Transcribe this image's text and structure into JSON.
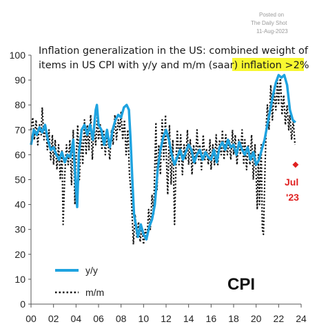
{
  "watermark": {
    "line1": "Posted on",
    "line2": "The Daily Shot",
    "line3": "11-Aug-2023"
  },
  "chart_data": {
    "type": "line",
    "title_line1": "Inflation generalization in the US: combined weight of",
    "title_line2_prefix": "items in US CPI with y/y and m/m (saar) ",
    "title_line2_highlight": "inflation >2%",
    "xlim": [
      0,
      24
    ],
    "ylim": [
      0,
      100
    ],
    "x_ticks": [
      0,
      2,
      4,
      6,
      8,
      10,
      12,
      14,
      16,
      18,
      20,
      22,
      24
    ],
    "x_tick_labels": [
      "00",
      "02",
      "04",
      "06",
      "08",
      "10",
      "12",
      "14",
      "16",
      "18",
      "20",
      "22",
      "24"
    ],
    "y_ticks": [
      0,
      10,
      20,
      30,
      40,
      50,
      60,
      70,
      80,
      90,
      100
    ],
    "y_tick_labels": [
      "0",
      "10",
      "20",
      "30",
      "40",
      "50",
      "60",
      "70",
      "80",
      "90",
      "100"
    ],
    "grid": false,
    "legend": "bottom-left",
    "series": [
      {
        "name": "y/y",
        "color": "#1fa3e0",
        "style": "solid",
        "points": [
          [
            0.0,
            64
          ],
          [
            0.25,
            70
          ],
          [
            0.5,
            68
          ],
          [
            0.75,
            71
          ],
          [
            1.0,
            69
          ],
          [
            1.25,
            72
          ],
          [
            1.5,
            66
          ],
          [
            1.75,
            62
          ],
          [
            2.0,
            63
          ],
          [
            2.25,
            60
          ],
          [
            2.5,
            58
          ],
          [
            2.75,
            61
          ],
          [
            3.0,
            57
          ],
          [
            3.25,
            60
          ],
          [
            3.5,
            59
          ],
          [
            3.75,
            66
          ],
          [
            4.0,
            46
          ],
          [
            4.1,
            39
          ],
          [
            4.25,
            60
          ],
          [
            4.5,
            70
          ],
          [
            4.75,
            72
          ],
          [
            5.0,
            68
          ],
          [
            5.25,
            72
          ],
          [
            5.5,
            66
          ],
          [
            5.75,
            78
          ],
          [
            5.85,
            80
          ],
          [
            6.0,
            72
          ],
          [
            6.25,
            70
          ],
          [
            6.5,
            64
          ],
          [
            6.75,
            70
          ],
          [
            7.0,
            63
          ],
          [
            7.25,
            70
          ],
          [
            7.5,
            74
          ],
          [
            7.75,
            76
          ],
          [
            8.0,
            75
          ],
          [
            8.25,
            79
          ],
          [
            8.5,
            80
          ],
          [
            8.7,
            78
          ],
          [
            8.85,
            66
          ],
          [
            9.0,
            50
          ],
          [
            9.15,
            36
          ],
          [
            9.35,
            31
          ],
          [
            9.5,
            27
          ],
          [
            9.75,
            32
          ],
          [
            10.0,
            28
          ],
          [
            10.25,
            26
          ],
          [
            10.5,
            31
          ],
          [
            10.75,
            34
          ],
          [
            11.0,
            40
          ],
          [
            11.25,
            54
          ],
          [
            11.5,
            62
          ],
          [
            11.75,
            67
          ],
          [
            12.0,
            70
          ],
          [
            12.25,
            66
          ],
          [
            12.5,
            60
          ],
          [
            12.75,
            56
          ],
          [
            13.0,
            59
          ],
          [
            13.25,
            62
          ],
          [
            13.5,
            58
          ],
          [
            13.75,
            61
          ],
          [
            14.0,
            64
          ],
          [
            14.25,
            62
          ],
          [
            14.5,
            57
          ],
          [
            14.75,
            60
          ],
          [
            15.0,
            62
          ],
          [
            15.25,
            58
          ],
          [
            15.5,
            61
          ],
          [
            15.75,
            59
          ],
          [
            16.0,
            58
          ],
          [
            16.25,
            62
          ],
          [
            16.5,
            57
          ],
          [
            16.75,
            63
          ],
          [
            17.0,
            65
          ],
          [
            17.25,
            62
          ],
          [
            17.5,
            66
          ],
          [
            17.75,
            63
          ],
          [
            18.0,
            64
          ],
          [
            18.25,
            60
          ],
          [
            18.5,
            65
          ],
          [
            18.75,
            62
          ],
          [
            19.0,
            60
          ],
          [
            19.25,
            63
          ],
          [
            19.5,
            58
          ],
          [
            19.75,
            61
          ],
          [
            20.0,
            56
          ],
          [
            20.25,
            58
          ],
          [
            20.5,
            62
          ],
          [
            20.75,
            66
          ],
          [
            21.0,
            72
          ],
          [
            21.25,
            78
          ],
          [
            21.5,
            84
          ],
          [
            21.75,
            89
          ],
          [
            22.0,
            92
          ],
          [
            22.25,
            91
          ],
          [
            22.5,
            92
          ],
          [
            22.75,
            88
          ],
          [
            23.0,
            78
          ],
          [
            23.25,
            74
          ],
          [
            23.5,
            73
          ]
        ]
      },
      {
        "name": "m/m",
        "color": "#111111",
        "style": "dotted",
        "points": [
          [
            0.0,
            70
          ],
          [
            0.15,
            75
          ],
          [
            0.3,
            66
          ],
          [
            0.45,
            74
          ],
          [
            0.6,
            64
          ],
          [
            0.75,
            72
          ],
          [
            0.9,
            68
          ],
          [
            1.0,
            79
          ],
          [
            1.15,
            66
          ],
          [
            1.3,
            72
          ],
          [
            1.45,
            62
          ],
          [
            1.6,
            70
          ],
          [
            1.75,
            58
          ],
          [
            1.9,
            68
          ],
          [
            2.0,
            56
          ],
          [
            2.15,
            66
          ],
          [
            2.3,
            54
          ],
          [
            2.45,
            64
          ],
          [
            2.6,
            50
          ],
          [
            2.75,
            62
          ],
          [
            2.85,
            32
          ],
          [
            3.0,
            52
          ],
          [
            3.15,
            64
          ],
          [
            3.3,
            56
          ],
          [
            3.45,
            66
          ],
          [
            3.6,
            48
          ],
          [
            3.75,
            70
          ],
          [
            3.9,
            40
          ],
          [
            4.0,
            58
          ],
          [
            4.15,
            72
          ],
          [
            4.3,
            50
          ],
          [
            4.45,
            70
          ],
          [
            4.6,
            56
          ],
          [
            4.75,
            74
          ],
          [
            4.9,
            60
          ],
          [
            5.0,
            72
          ],
          [
            5.15,
            62
          ],
          [
            5.3,
            76
          ],
          [
            5.45,
            58
          ],
          [
            5.6,
            72
          ],
          [
            5.75,
            64
          ],
          [
            5.9,
            76
          ],
          [
            6.0,
            66
          ],
          [
            6.15,
            72
          ],
          [
            6.3,
            62
          ],
          [
            6.45,
            70
          ],
          [
            6.6,
            60
          ],
          [
            6.75,
            68
          ],
          [
            6.9,
            62
          ],
          [
            7.0,
            58
          ],
          [
            7.15,
            70
          ],
          [
            7.3,
            64
          ],
          [
            7.45,
            76
          ],
          [
            7.6,
            66
          ],
          [
            7.75,
            74
          ],
          [
            7.9,
            70
          ],
          [
            8.0,
            77
          ],
          [
            8.15,
            66
          ],
          [
            8.3,
            74
          ],
          [
            8.45,
            60
          ],
          [
            8.6,
            70
          ],
          [
            8.75,
            52
          ],
          [
            8.9,
            44
          ],
          [
            9.0,
            34
          ],
          [
            9.1,
            24
          ],
          [
            9.25,
            36
          ],
          [
            9.4,
            27
          ],
          [
            9.55,
            33
          ],
          [
            9.7,
            25
          ],
          [
            9.85,
            31
          ],
          [
            10.0,
            24
          ],
          [
            10.15,
            30
          ],
          [
            10.3,
            26
          ],
          [
            10.45,
            38
          ],
          [
            10.6,
            30
          ],
          [
            10.75,
            44
          ],
          [
            10.9,
            36
          ],
          [
            11.0,
            56
          ],
          [
            11.1,
            73
          ],
          [
            11.2,
            46
          ],
          [
            11.35,
            64
          ],
          [
            11.5,
            52
          ],
          [
            11.65,
            74
          ],
          [
            11.8,
            58
          ],
          [
            11.95,
            76
          ],
          [
            12.0,
            62
          ],
          [
            12.15,
            44
          ],
          [
            12.3,
            72
          ],
          [
            12.45,
            48
          ],
          [
            12.6,
            66
          ],
          [
            12.75,
            32
          ],
          [
            12.9,
            60
          ],
          [
            13.0,
            70
          ],
          [
            13.15,
            56
          ],
          [
            13.3,
            68
          ],
          [
            13.45,
            52
          ],
          [
            13.6,
            64
          ],
          [
            13.75,
            58
          ],
          [
            13.9,
            70
          ],
          [
            14.0,
            56
          ],
          [
            14.15,
            66
          ],
          [
            14.3,
            52
          ],
          [
            14.45,
            64
          ],
          [
            14.6,
            56
          ],
          [
            14.75,
            70
          ],
          [
            14.9,
            58
          ],
          [
            15.0,
            64
          ],
          [
            15.15,
            54
          ],
          [
            15.3,
            68
          ],
          [
            15.45,
            58
          ],
          [
            15.6,
            62
          ],
          [
            15.75,
            56
          ],
          [
            15.9,
            66
          ],
          [
            16.0,
            54
          ],
          [
            16.15,
            64
          ],
          [
            16.3,
            56
          ],
          [
            16.45,
            68
          ],
          [
            16.6,
            56
          ],
          [
            16.75,
            66
          ],
          [
            16.9,
            60
          ],
          [
            17.0,
            70
          ],
          [
            17.15,
            58
          ],
          [
            17.3,
            68
          ],
          [
            17.45,
            60
          ],
          [
            17.6,
            66
          ],
          [
            17.75,
            58
          ],
          [
            17.9,
            70
          ],
          [
            18.0,
            60
          ],
          [
            18.15,
            68
          ],
          [
            18.3,
            56
          ],
          [
            18.45,
            66
          ],
          [
            18.6,
            60
          ],
          [
            18.75,
            70
          ],
          [
            18.9,
            56
          ],
          [
            19.0,
            66
          ],
          [
            19.15,
            54
          ],
          [
            19.3,
            64
          ],
          [
            19.45,
            56
          ],
          [
            19.6,
            68
          ],
          [
            19.75,
            50
          ],
          [
            19.9,
            64
          ],
          [
            20.0,
            52
          ],
          [
            20.1,
            38
          ],
          [
            20.2,
            60
          ],
          [
            20.3,
            40
          ],
          [
            20.45,
            64
          ],
          [
            20.55,
            30
          ],
          [
            20.65,
            28
          ],
          [
            20.8,
            56
          ],
          [
            20.9,
            72
          ],
          [
            21.0,
            80
          ],
          [
            21.15,
            70
          ],
          [
            21.3,
            88
          ],
          [
            21.45,
            74
          ],
          [
            21.6,
            86
          ],
          [
            21.75,
            78
          ],
          [
            21.9,
            90
          ],
          [
            22.0,
            80
          ],
          [
            22.15,
            92
          ],
          [
            22.3,
            76
          ],
          [
            22.45,
            84
          ],
          [
            22.6,
            72
          ],
          [
            22.75,
            80
          ],
          [
            22.9,
            70
          ],
          [
            23.0,
            76
          ],
          [
            23.15,
            66
          ],
          [
            23.3,
            74
          ],
          [
            23.45,
            64
          ]
        ]
      }
    ],
    "annotation": {
      "x": 23.5,
      "y": 56,
      "color": "#e02020",
      "label_line1": "Jul",
      "label_line2": "'23"
    },
    "big_label": "CPI"
  }
}
